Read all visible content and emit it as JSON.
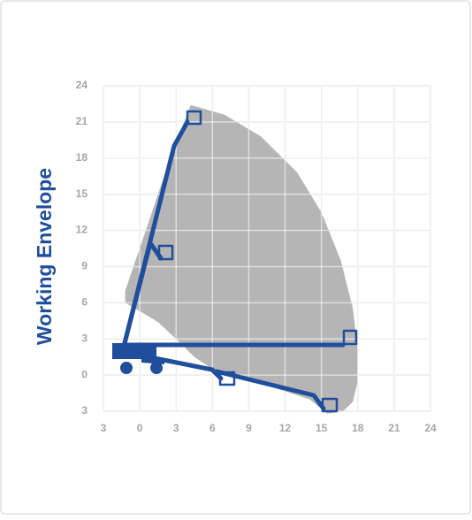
{
  "chart_data": {
    "type": "envelope",
    "title": "Working Envelope",
    "xlim": [
      -3,
      24
    ],
    "ylim": [
      -3,
      24
    ],
    "xticks": [
      {
        "value": -3,
        "label": "3"
      },
      0,
      3,
      6,
      9,
      12,
      15,
      18,
      21,
      24
    ],
    "yticks": [
      {
        "value": -3,
        "label": "3"
      },
      0,
      3,
      6,
      9,
      12,
      15,
      18,
      21,
      24
    ],
    "grid": true,
    "series": [
      {
        "color": "#b5b5b5",
        "x": [
          4.2,
          7,
          10,
          13,
          15,
          16.6,
          17.6,
          18,
          18,
          17.6,
          16.8,
          15.5,
          14,
          10,
          6,
          4.5,
          3,
          1.5,
          0,
          -1.2,
          -1.2,
          0.5,
          2.5
        ],
        "values": [
          22.4,
          21.6,
          19.8,
          16.8,
          13.5,
          9.5,
          5.5,
          2,
          -0.5,
          -2.2,
          -3,
          -3.2,
          -2,
          -0.7,
          0.5,
          1.5,
          3,
          4.4,
          5.3,
          6,
          7,
          12,
          18
        ]
      }
    ]
  }
}
